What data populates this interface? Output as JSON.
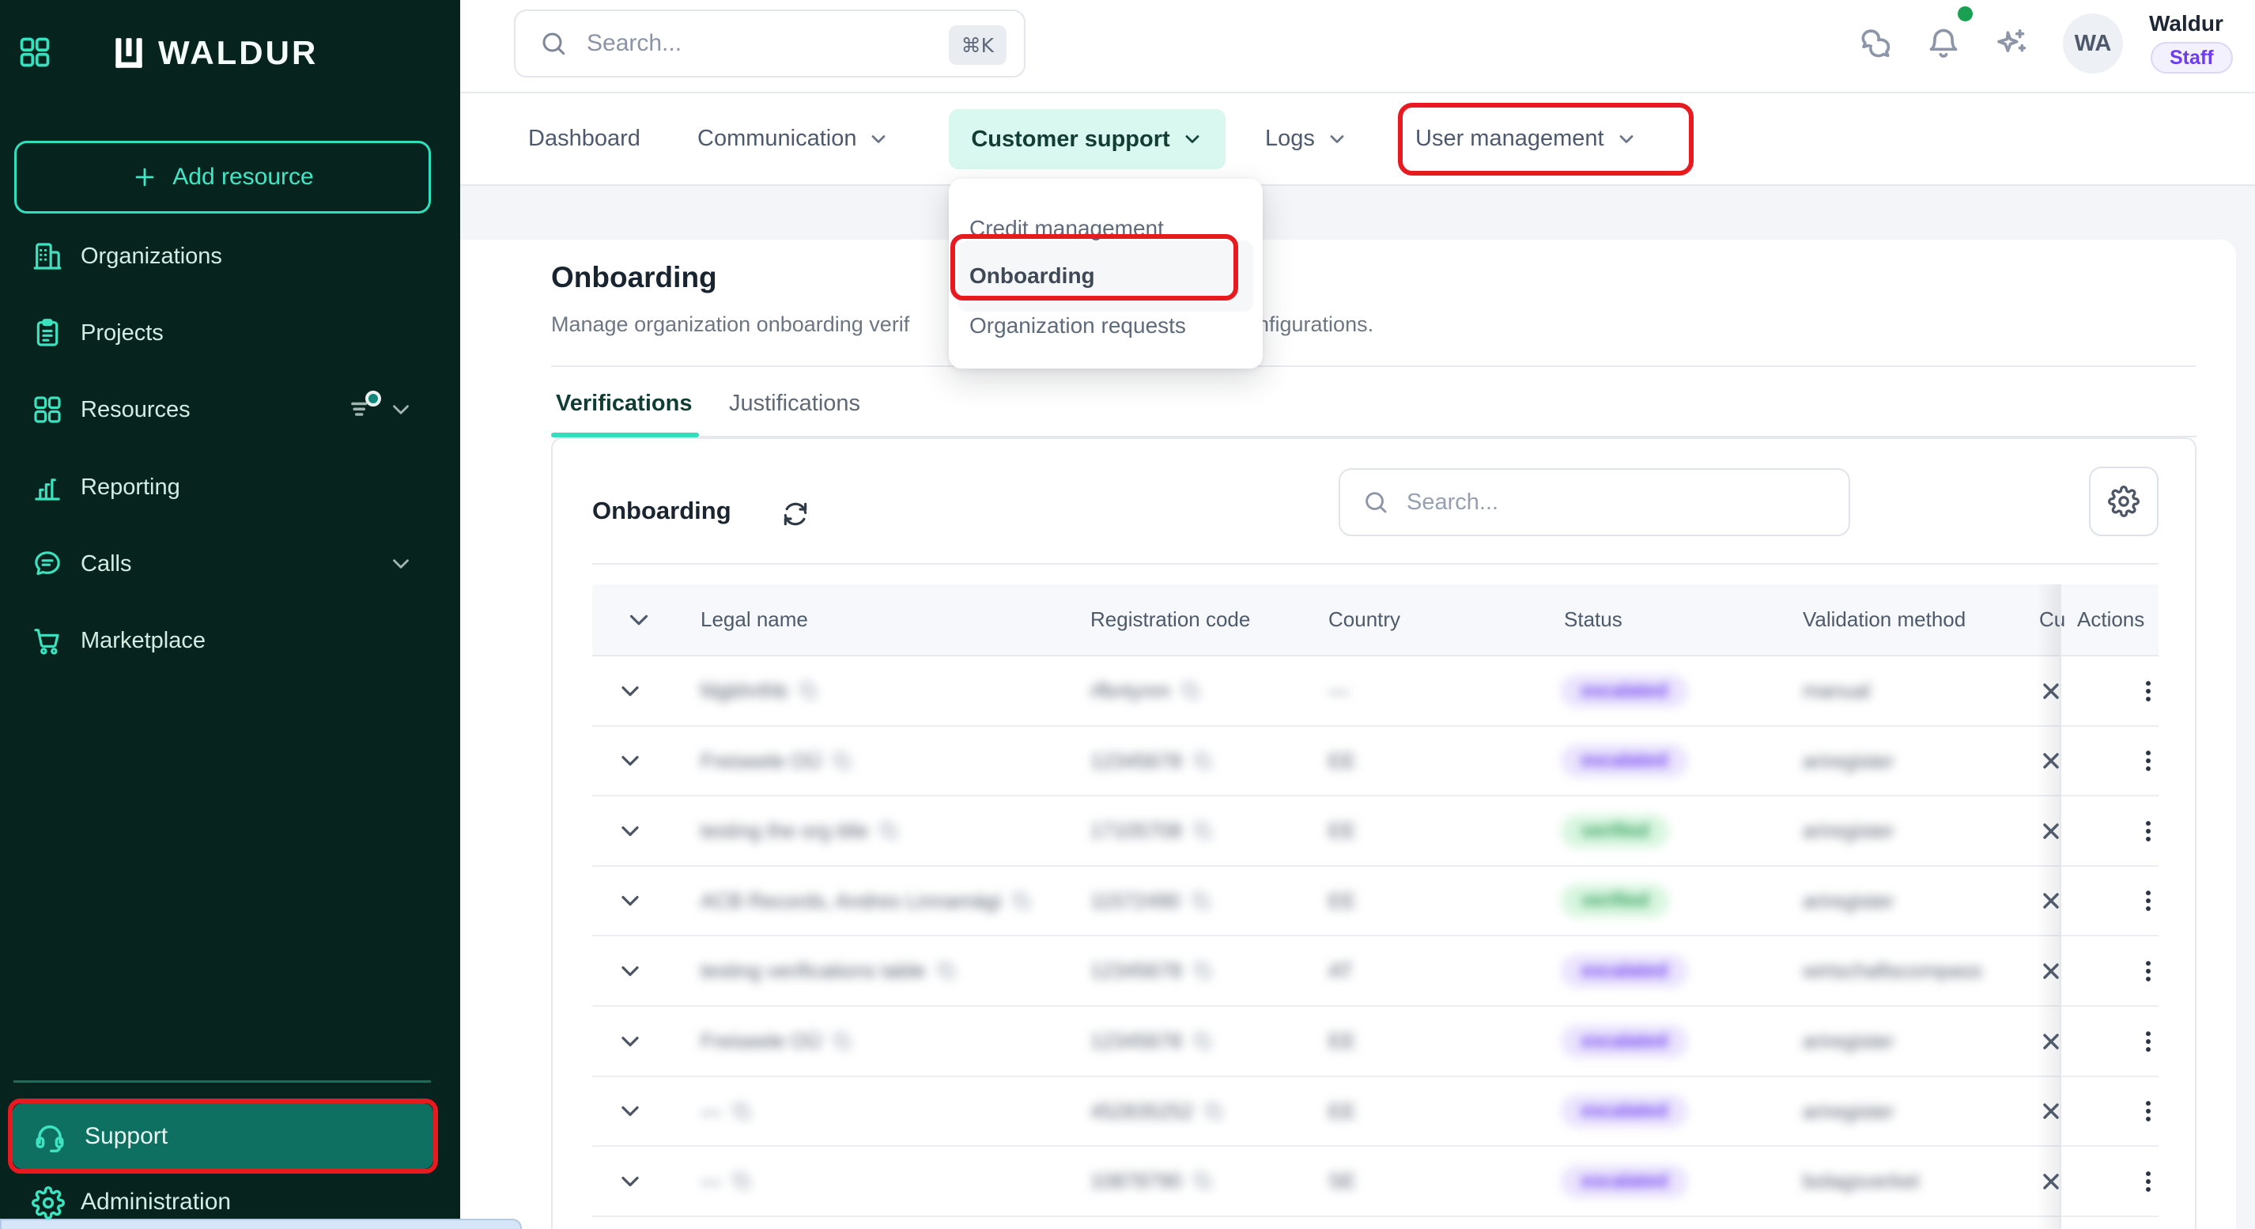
{
  "sidebar": {
    "logo_text": "WALDUR",
    "add_resource_label": "Add resource",
    "items": [
      {
        "label": "Organizations",
        "icon": "building"
      },
      {
        "label": "Projects",
        "icon": "clipboard"
      },
      {
        "label": "Resources",
        "icon": "grid",
        "trailing": [
          "filter-dot",
          "chevron"
        ]
      },
      {
        "label": "Reporting",
        "icon": "bar-chart"
      },
      {
        "label": "Calls",
        "icon": "message",
        "trailing": [
          "chevron"
        ]
      },
      {
        "label": "Marketplace",
        "icon": "cart"
      }
    ],
    "support_label": "Support",
    "administration_label": "Administration"
  },
  "topbar": {
    "search_placeholder": "Search...",
    "search_shortcut": "⌘K",
    "user_initials": "WA",
    "user_name": "Waldur",
    "user_role": "Staff"
  },
  "navbar": {
    "items": [
      {
        "label": "Dashboard",
        "chevron": false
      },
      {
        "label": "Communication",
        "chevron": true
      },
      {
        "label": "Customer support",
        "chevron": true,
        "highlighted": true
      },
      {
        "label": "Logs",
        "chevron": true
      },
      {
        "label": "User management",
        "chevron": true
      }
    ]
  },
  "dropdown": {
    "items": [
      "Credit management",
      "Onboarding",
      "Organization requests"
    ],
    "highlighted_item": "Onboarding"
  },
  "page": {
    "title": "Onboarding",
    "description_left": "Manage organization onboarding verif",
    "description_right": "nfigurations.",
    "tabs": [
      {
        "label": "Verifications",
        "active": true
      },
      {
        "label": "Justifications",
        "active": false
      }
    ]
  },
  "card": {
    "title": "Onboarding",
    "search_placeholder": "Search..."
  },
  "table": {
    "columns": [
      "Legal name",
      "Registration code",
      "Country",
      "Status",
      "Validation method",
      "Cu",
      "Actions"
    ],
    "rows": [
      {
        "legal_name": "fdgbhrthb",
        "registration_code": "rfbntynm",
        "country": "—",
        "status": "escalated",
        "validation_method": "manual"
      },
      {
        "legal_name": "Freiseele OÜ",
        "registration_code": "12345678",
        "country": "EE",
        "status": "escalated",
        "validation_method": "ariregister"
      },
      {
        "legal_name": "testing the org title",
        "registration_code": "17105708",
        "country": "EE",
        "status": "verified",
        "validation_method": "ariregister"
      },
      {
        "legal_name": "ACB Records, Andres Linnamägi",
        "registration_code": "11572490",
        "country": "EE",
        "status": "verified",
        "validation_method": "ariregister"
      },
      {
        "legal_name": "testing verifications table",
        "registration_code": "12345678",
        "country": "AT",
        "status": "escalated",
        "validation_method": "wirtschaftscompass"
      },
      {
        "legal_name": "Freiseele OÜ",
        "registration_code": "12345678",
        "country": "EE",
        "status": "escalated",
        "validation_method": "ariregister"
      },
      {
        "legal_name": "—",
        "registration_code": "452835252",
        "country": "EE",
        "status": "escalated",
        "validation_method": "ariregister"
      },
      {
        "legal_name": "—",
        "registration_code": "10878790",
        "country": "SE",
        "status": "escalated",
        "validation_method": "bolagsverket"
      }
    ]
  },
  "colors": {
    "accent_teal": "#2fe0bf",
    "annotation_red": "#e81a1f",
    "sidebar_bg": "#07231d",
    "sidebar_active_bg": "#0e7061",
    "nav_highlight_bg": "#d9f8f0",
    "escalated_bg": "#eae4fd",
    "escalated_text": "#6c3cf0",
    "verified_bg": "#d9f6e0",
    "verified_text": "#2e9e5b",
    "notification_dot": "#1aa053"
  }
}
